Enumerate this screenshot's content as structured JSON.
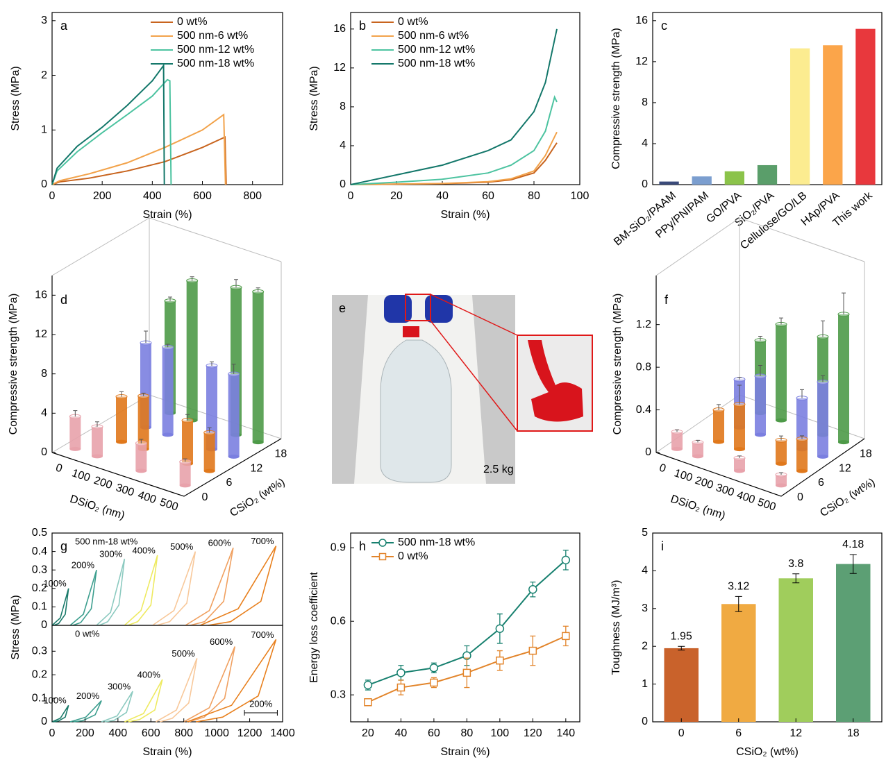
{
  "chart_data": [
    {
      "type": "line",
      "panel": "a",
      "xlabel": "Strain (%)",
      "ylabel": "Stress (MPa)",
      "xlim": [
        0,
        920
      ],
      "ylim": [
        0,
        3.15
      ],
      "xticks": [
        0,
        200,
        400,
        600,
        800
      ],
      "yticks": [
        0,
        1,
        2,
        3
      ],
      "legend": "upper right",
      "series": [
        {
          "name": "0 wt%",
          "color": "#c8641e",
          "x": [
            0,
            30,
            150,
            300,
            450,
            600,
            690,
            695
          ],
          "y": [
            0,
            0.05,
            0.12,
            0.25,
            0.42,
            0.68,
            0.87,
            0
          ]
        },
        {
          "name": "500 nm-6 wt%",
          "color": "#f2a24a",
          "x": [
            0,
            30,
            150,
            300,
            450,
            600,
            685,
            692
          ],
          "y": [
            0,
            0.07,
            0.2,
            0.4,
            0.68,
            1.0,
            1.28,
            0
          ]
        },
        {
          "name": "500 nm-12 wt%",
          "color": "#4cc3a0",
          "x": [
            0,
            20,
            100,
            200,
            300,
            400,
            460,
            470,
            475
          ],
          "y": [
            0,
            0.25,
            0.6,
            0.95,
            1.28,
            1.62,
            1.92,
            1.9,
            0
          ]
        },
        {
          "name": "500 nm-18 wt%",
          "color": "#13776a",
          "x": [
            0,
            20,
            100,
            200,
            300,
            400,
            445,
            448
          ],
          "y": [
            0,
            0.3,
            0.7,
            1.05,
            1.45,
            1.9,
            2.18,
            0
          ]
        }
      ]
    },
    {
      "type": "line",
      "panel": "b",
      "xlabel": "Strain (%)",
      "ylabel": "Stress (MPa)",
      "xlim": [
        0,
        100
      ],
      "ylim": [
        0,
        17.7
      ],
      "xticks": [
        0,
        20,
        40,
        60,
        80,
        100
      ],
      "yticks": [
        0,
        4,
        8,
        12,
        16
      ],
      "legend": "upper left",
      "series": [
        {
          "name": "0 wt%",
          "color": "#c8641e",
          "x": [
            0,
            20,
            40,
            60,
            70,
            80,
            85,
            90
          ],
          "y": [
            0,
            0.05,
            0.1,
            0.25,
            0.5,
            1.2,
            2.5,
            4.3
          ]
        },
        {
          "name": "500 nm-6 wt%",
          "color": "#f2a24a",
          "x": [
            0,
            20,
            40,
            60,
            70,
            80,
            85,
            90
          ],
          "y": [
            0,
            0.05,
            0.12,
            0.3,
            0.6,
            1.4,
            3,
            5.4
          ]
        },
        {
          "name": "500 nm-12 wt%",
          "color": "#4cc3a0",
          "x": [
            0,
            20,
            40,
            60,
            70,
            80,
            85,
            89,
            90
          ],
          "y": [
            0,
            0.25,
            0.55,
            1.2,
            2,
            3.5,
            5.5,
            9,
            8.5
          ]
        },
        {
          "name": "500 nm-18 wt%",
          "color": "#13776a",
          "x": [
            0,
            20,
            40,
            60,
            70,
            80,
            85,
            90
          ],
          "y": [
            0,
            1,
            2,
            3.5,
            4.6,
            7.5,
            10.5,
            16
          ]
        }
      ]
    },
    {
      "type": "bar",
      "panel": "c",
      "ylabel": "Compressive strength (MPa)",
      "ylim": [
        0,
        16.8
      ],
      "yticks": [
        0,
        4,
        8,
        12,
        16
      ],
      "categories": [
        "BM-SiO₂/PAAM",
        "PPy/PNIPAM",
        "GO/PVA",
        "SiO₂/PVA",
        "Cellulose/GO/LB",
        "HAp/PVA",
        "This work"
      ],
      "values": [
        0.3,
        0.8,
        1.3,
        1.9,
        13.3,
        13.6,
        15.2
      ],
      "colors": [
        "#3a4a7a",
        "#7b9ecf",
        "#8bc34a",
        "#5a9e6a",
        "#fcec90",
        "#fba54a",
        "#e8383d"
      ]
    },
    {
      "type": "bar3d",
      "panel": "d",
      "xlabel": "DSiO₂ (nm)",
      "ylabel": "Compressive strength (MPa)",
      "zlabel": "CSiO₂ (wt%)",
      "ylim": [
        0,
        18
      ],
      "yticks": [
        0,
        4,
        8,
        12,
        16
      ],
      "categories": [
        "0",
        "100",
        "200",
        "300",
        "400",
        "500"
      ],
      "series": [
        {
          "name": "0",
          "color": "#e8a2ab",
          "values": [
            3.3,
            3.0,
            null,
            2.8,
            null,
            2.4
          ],
          "errors": [
            0.6,
            0.5,
            null,
            0.4,
            null,
            0.3
          ]
        },
        {
          "name": "6",
          "color": "#e0781c",
          "values": [
            null,
            4.6,
            5.4,
            null,
            4.4,
            3.9
          ],
          "errors": [
            null,
            0.5,
            0.3,
            null,
            0.6,
            0.5
          ]
        },
        {
          "name": "12",
          "color": "#7b7fe0",
          "values": [
            null,
            8.6,
            8.9,
            null,
            8.5,
            8.4
          ],
          "errors": [
            null,
            1.2,
            0.3,
            null,
            0.4,
            1.0
          ]
        },
        {
          "name": "18",
          "color": "#4e9a48",
          "values": [
            null,
            11.4,
            14.2,
            null,
            15.0,
            15.3
          ],
          "errors": [
            null,
            0.4,
            0.4,
            null,
            0.8,
            0.4
          ]
        }
      ]
    },
    {
      "type": "image",
      "panel": "e",
      "annotation": "2.5 kg"
    },
    {
      "type": "bar3d",
      "panel": "f",
      "xlabel": "DSiO₂ (nm)",
      "ylabel": "Compressive strength (MPa)",
      "zlabel": "CSiO₂ (wt%)",
      "ylim": [
        0,
        1.66
      ],
      "yticks": [
        0,
        0.4,
        0.8,
        1.2
      ],
      "categories": [
        "0",
        "100",
        "200",
        "300",
        "400",
        "500"
      ],
      "series": [
        {
          "name": "0",
          "color": "#e8a2ab",
          "values": [
            0.16,
            0.13,
            null,
            0.12,
            null,
            0.1
          ],
          "errors": [
            0.02,
            0.02,
            null,
            0.02,
            null,
            0.02
          ]
        },
        {
          "name": "6",
          "color": "#e0781c",
          "values": [
            null,
            0.3,
            0.42,
            null,
            0.22,
            0.3
          ],
          "errors": [
            null,
            0.05,
            0.18,
            null,
            0.04,
            0.03
          ]
        },
        {
          "name": "12",
          "color": "#7b7fe0",
          "values": [
            null,
            0.45,
            0.55,
            null,
            0.48,
            0.7
          ],
          "errors": [
            null,
            0.02,
            0.1,
            null,
            0.08,
            0.06
          ]
        },
        {
          "name": "18",
          "color": "#4e9a48",
          "values": [
            null,
            0.68,
            0.9,
            null,
            0.92,
            1.2
          ],
          "errors": [
            null,
            0.04,
            0.06,
            null,
            0.15,
            0.2
          ]
        }
      ]
    },
    {
      "type": "loops",
      "panel": "g",
      "xlabel": "Strain (%)",
      "ylabel": "Stress (MPa)",
      "xlim": [
        0,
        1400
      ],
      "xticks": [
        0,
        200,
        400,
        600,
        800,
        1000,
        1200,
        1400
      ],
      "scale_bar": {
        "value": 200,
        "label": "200%"
      },
      "panels": [
        {
          "annotation": "500 nm-18 wt%",
          "ylim": [
            0,
            0.5
          ],
          "yticks": [
            0,
            0.1,
            0.2,
            0.3,
            0.4,
            0.5
          ],
          "series": [
            {
              "name": "100%",
              "color": "#1a7a6a",
              "x": [
                0,
                50,
                100,
                80,
                40,
                10
              ],
              "y": [
                0,
                0.04,
                0.2,
                0.06,
                0.01,
                0
              ]
            },
            {
              "name": "200%",
              "color": "#3c9e8e",
              "x": [
                110,
                190,
                270,
                238,
                174,
                126
              ],
              "y": [
                0,
                0.06,
                0.3,
                0.09,
                0.015,
                0
              ]
            },
            {
              "name": "300%",
              "color": "#8ccac0",
              "x": [
                270,
                355,
                440,
                406,
                338,
                287
              ],
              "y": [
                0,
                0.07,
                0.36,
                0.11,
                0.02,
                0
              ]
            },
            {
              "name": "400%",
              "color": "#eeea60",
              "x": [
                440,
                540,
                640,
                600,
                520,
                460
              ],
              "y": [
                0,
                0.08,
                0.38,
                0.11,
                0.02,
                0
              ]
            },
            {
              "name": "500%",
              "color": "#f8c89a",
              "x": [
                610,
                740,
                870,
                818,
                714,
                636
              ],
              "y": [
                0,
                0.08,
                0.4,
                0.12,
                0.02,
                0
              ]
            },
            {
              "name": "600%",
              "color": "#f0a060",
              "x": [
                810,
                955,
                1100,
                1042,
                926,
                839
              ],
              "y": [
                0,
                0.08,
                0.42,
                0.13,
                0.02,
                0
              ]
            },
            {
              "name": "700%",
              "color": "#e8801e",
              "x": [
                900,
                1130,
                1360,
                1268,
                1084,
                946
              ],
              "y": [
                0,
                0.09,
                0.43,
                0.13,
                0.02,
                0
              ]
            }
          ]
        },
        {
          "annotation": "0 wt%",
          "ylim": [
            0,
            0.41
          ],
          "yticks": [
            0,
            0.1,
            0.2,
            0.3
          ],
          "series": [
            {
              "name": "100%",
              "color": "#1a7a6a",
              "x": [
                0,
                50,
                100,
                80,
                40,
                10
              ],
              "y": [
                0,
                0.015,
                0.07,
                0.02,
                0.004,
                0
              ]
            },
            {
              "name": "200%",
              "color": "#3c9e8e",
              "x": [
                110,
                205,
                300,
                262,
                186,
                129
              ],
              "y": [
                0,
                0.02,
                0.09,
                0.03,
                0.005,
                0
              ]
            },
            {
              "name": "300%",
              "color": "#8ccac0",
              "x": [
                300,
                395,
                490,
                452,
                376,
                319
              ],
              "y": [
                0,
                0.025,
                0.13,
                0.04,
                0.006,
                0
              ]
            },
            {
              "name": "400%",
              "color": "#eeea60",
              "x": [
                440,
                555,
                670,
                624,
                532,
                463
              ],
              "y": [
                0,
                0.035,
                0.18,
                0.05,
                0.01,
                0
              ]
            },
            {
              "name": "500%",
              "color": "#f8c89a",
              "x": [
                630,
                755,
                880,
                830,
                730,
                655
              ],
              "y": [
                0,
                0.05,
                0.27,
                0.08,
                0.015,
                0
              ]
            },
            {
              "name": "600%",
              "color": "#f0a060",
              "x": [
                800,
                955,
                1110,
                1048,
                924,
                831
              ],
              "y": [
                0,
                0.06,
                0.32,
                0.1,
                0.02,
                0
              ]
            },
            {
              "name": "700%",
              "color": "#e8801e",
              "x": [
                820,
                1090,
                1360,
                1252,
                1036,
                874
              ],
              "y": [
                0,
                0.07,
                0.35,
                0.11,
                0.02,
                0
              ]
            }
          ]
        }
      ]
    },
    {
      "type": "line",
      "panel": "h",
      "xlabel": "Strain (%)",
      "ylabel": "Energy loss coefficient",
      "xlim": [
        9.5,
        148.5
      ],
      "ylim": [
        0.19,
        0.96
      ],
      "xticks": [
        20,
        40,
        60,
        80,
        100,
        120,
        140
      ],
      "yticks": [
        0.3,
        0.6,
        0.9
      ],
      "legend": "upper left",
      "series": [
        {
          "name": "500 nm-18 wt%",
          "color": "#17806f",
          "marker": "circle",
          "x": [
            20,
            40,
            60,
            80,
            100,
            120,
            140
          ],
          "y": [
            0.34,
            0.39,
            0.41,
            0.46,
            0.57,
            0.73,
            0.85
          ],
          "errors": [
            0.02,
            0.03,
            0.02,
            0.04,
            0.06,
            0.03,
            0.04
          ]
        },
        {
          "name": "0 wt%",
          "color": "#e2842a",
          "marker": "square",
          "x": [
            20,
            40,
            60,
            80,
            100,
            120,
            140
          ],
          "y": [
            0.27,
            0.33,
            0.35,
            0.39,
            0.44,
            0.48,
            0.54
          ],
          "errors": [
            0.01,
            0.03,
            0.02,
            0.06,
            0.04,
            0.06,
            0.04
          ]
        }
      ]
    },
    {
      "type": "bar",
      "panel": "i",
      "data_labels": true,
      "xlabel": "CSiO₂ (wt%)",
      "ylabel": "Toughness (MJ/m³)",
      "ylim": [
        0,
        5
      ],
      "yticks": [
        0,
        1,
        2,
        3,
        4,
        5
      ],
      "categories": [
        "0",
        "6",
        "12",
        "18"
      ],
      "values": [
        1.95,
        3.12,
        3.8,
        4.18
      ],
      "errors": [
        0.05,
        0.2,
        0.12,
        0.25
      ],
      "colors": [
        "#c9622b",
        "#f0aa42",
        "#a0cd5c",
        "#5c9f74"
      ]
    }
  ]
}
